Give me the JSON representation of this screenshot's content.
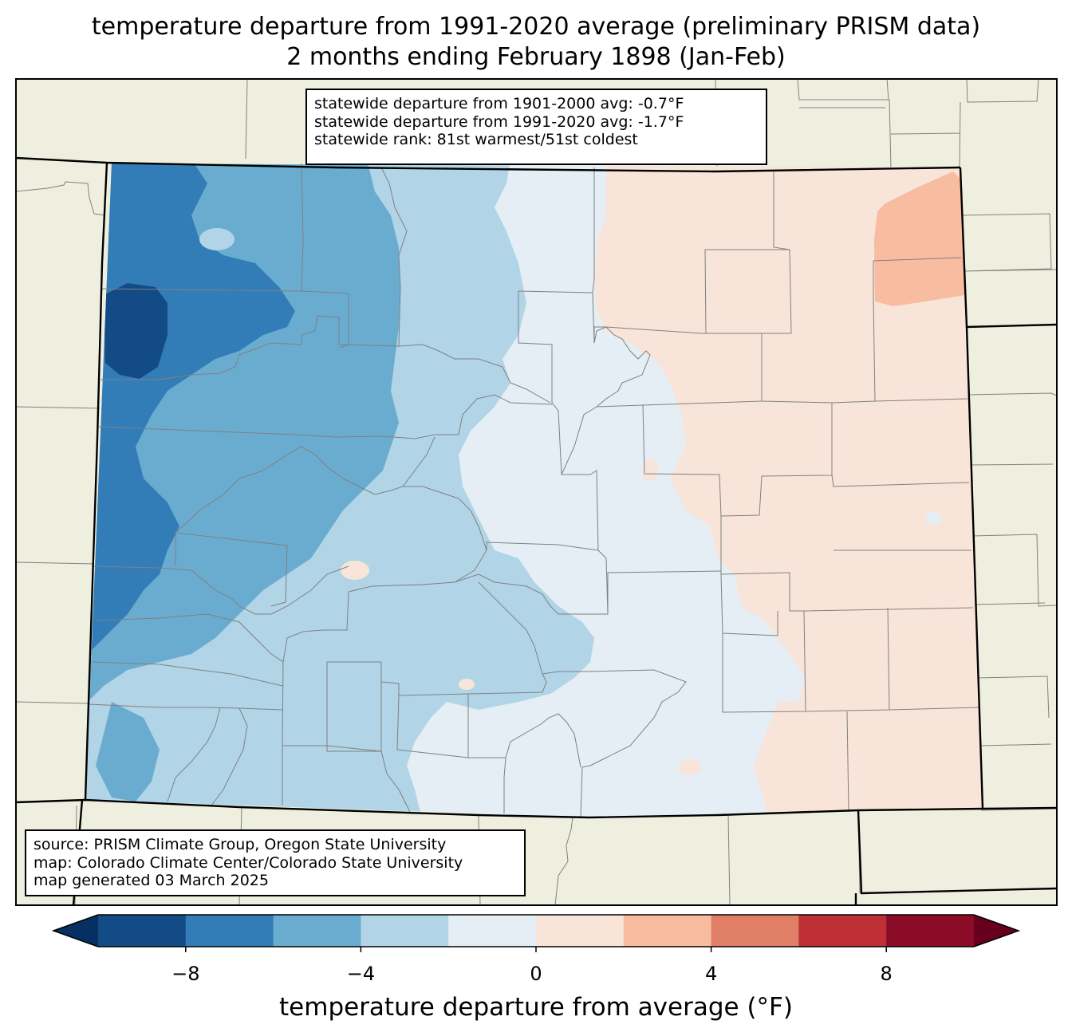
{
  "title": {
    "line1": "temperature departure from 1991-2020 average (preliminary PRISM data)",
    "line2": "2 months ending February 1898 (Jan-Feb)"
  },
  "stats": {
    "line1": "statewide departure from 1901-2000 avg: -0.7°F",
    "line2": "statewide departure from 1991-2020 avg: -1.7°F",
    "line3": "statewide rank: 81st warmest/51st coldest"
  },
  "credits": {
    "line1": "source: PRISM Climate Group, Oregon State University",
    "line2": "map: Colorado Climate Center/Colorado State University",
    "line3": "map generated 03 March 2025"
  },
  "colorbar": {
    "label": "temperature departure from average (°F)",
    "ticks": [
      "−8",
      "−4",
      "0",
      "4",
      "8"
    ],
    "tick_values": [
      -8,
      -4,
      0,
      4,
      8
    ],
    "range": [
      -10,
      10
    ],
    "bin_width": 2,
    "extend": "both",
    "colors": [
      "#053061",
      "#134b87",
      "#327db7",
      "#6aacd0",
      "#b1d5e7",
      "#e4eef4",
      "#f9e4da",
      "#f8bca1",
      "#e07f66",
      "#be3036",
      "#8a0c26",
      "#67001f"
    ]
  },
  "map": {
    "background_color": "#efefdf",
    "county_line_color": "#808080",
    "state_line_color": "#000000"
  }
}
